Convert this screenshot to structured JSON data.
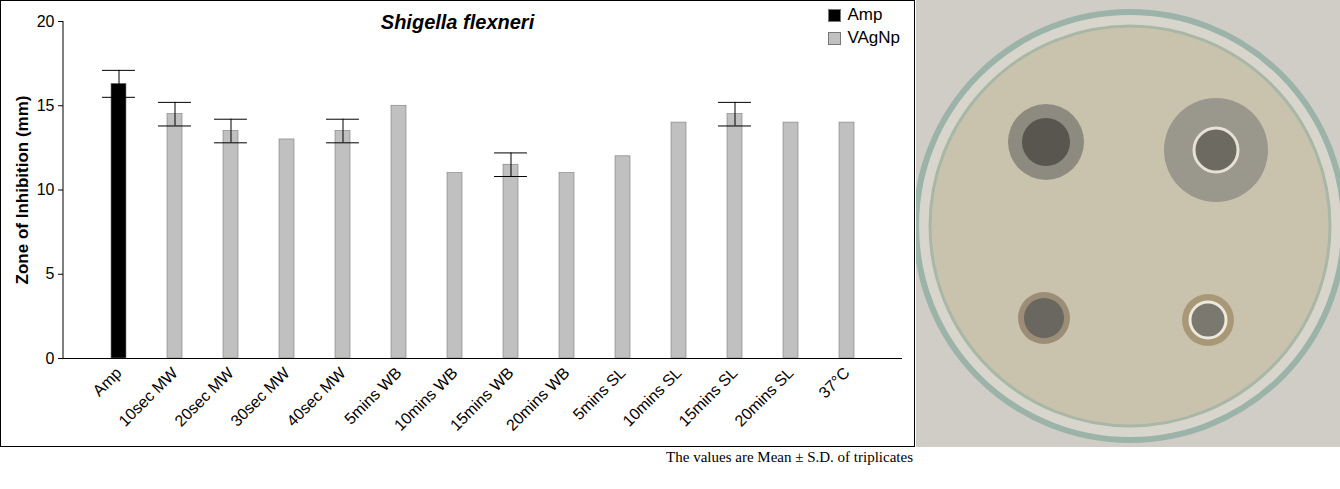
{
  "chart_data": {
    "type": "bar",
    "title": "Shigella flexneri",
    "ylabel": "Zone of Inhibition (mm)",
    "caption": "The values are Mean ± S.D. of triplicates",
    "categories": [
      "Amp",
      "10sec MW",
      "20sec MW",
      "30sec MW",
      "40sec MW",
      "5mins WB",
      "10mins WB",
      "15mins WB",
      "20mins WB",
      "5mins SL",
      "10mins SL",
      "15mins SL",
      "20mins SL",
      "37°C"
    ],
    "series": [
      {
        "name": "Amp",
        "color": "#000000",
        "values": [
          16.3,
          null,
          null,
          null,
          null,
          null,
          null,
          null,
          null,
          null,
          null,
          null,
          null,
          null
        ],
        "errors": [
          0.8,
          null,
          null,
          null,
          null,
          null,
          null,
          null,
          null,
          null,
          null,
          null,
          null,
          null
        ]
      },
      {
        "name": "VAgNp",
        "color": "#c0c0c0",
        "values": [
          null,
          14.5,
          13.5,
          13,
          13.5,
          15,
          11,
          11.5,
          11,
          12,
          14,
          14.5,
          14,
          14
        ],
        "errors": [
          null,
          0.7,
          0.7,
          null,
          0.7,
          null,
          null,
          0.7,
          null,
          null,
          null,
          0.7,
          null,
          null
        ]
      }
    ],
    "ylim": [
      0,
      20
    ],
    "yticks": [
      0,
      5,
      10,
      15,
      20
    ],
    "grid": false,
    "legend": "top-right"
  }
}
